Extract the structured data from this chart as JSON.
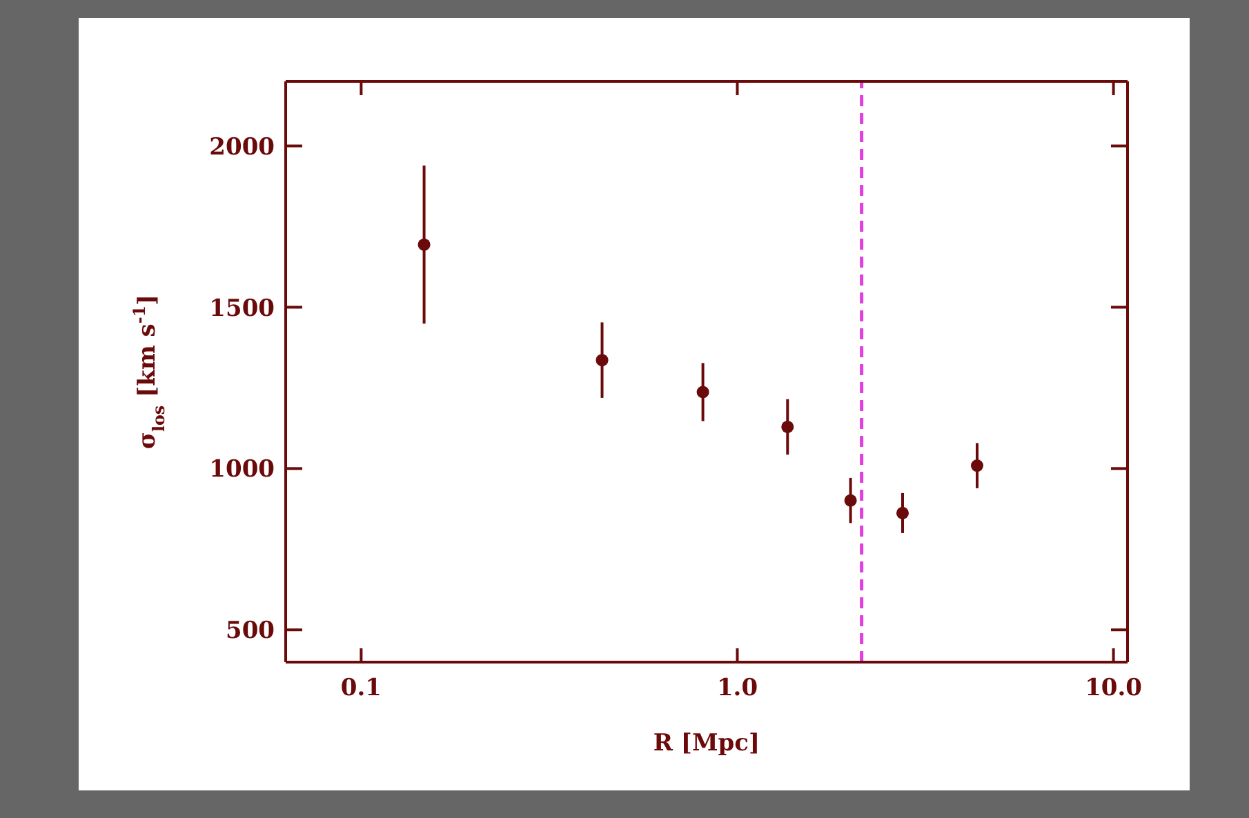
{
  "chart_data": {
    "type": "scatter",
    "xlabel": "R [Mpc]",
    "ylabel": "σ$_{los}$ [km s$^{-1}$]",
    "log": "x",
    "x": [
      0.147,
      0.437,
      0.81,
      1.36,
      2.0,
      2.75,
      4.34
    ],
    "values": [
      1694,
      1336,
      1237,
      1129,
      901,
      862,
      1009
    ],
    "errors": [
      245,
      117,
      90,
      86,
      70,
      62,
      70
    ],
    "color": "#6b0a0a",
    "marker": "circle",
    "xlim": [
      0.063,
      10.9
    ],
    "xticks": [
      {
        "value": 0.1,
        "label": "0.1"
      },
      {
        "value": 1,
        "label": "1.0"
      },
      {
        "value": 10,
        "label": "10.0"
      }
    ],
    "ylim": [
      400,
      2200
    ],
    "yticks": [
      500,
      1000,
      1500,
      2000
    ],
    "ref_lines": [
      {
        "axis": "x",
        "value": 2.14,
        "color": "#e040e0",
        "line_style": "dashed"
      }
    ]
  }
}
